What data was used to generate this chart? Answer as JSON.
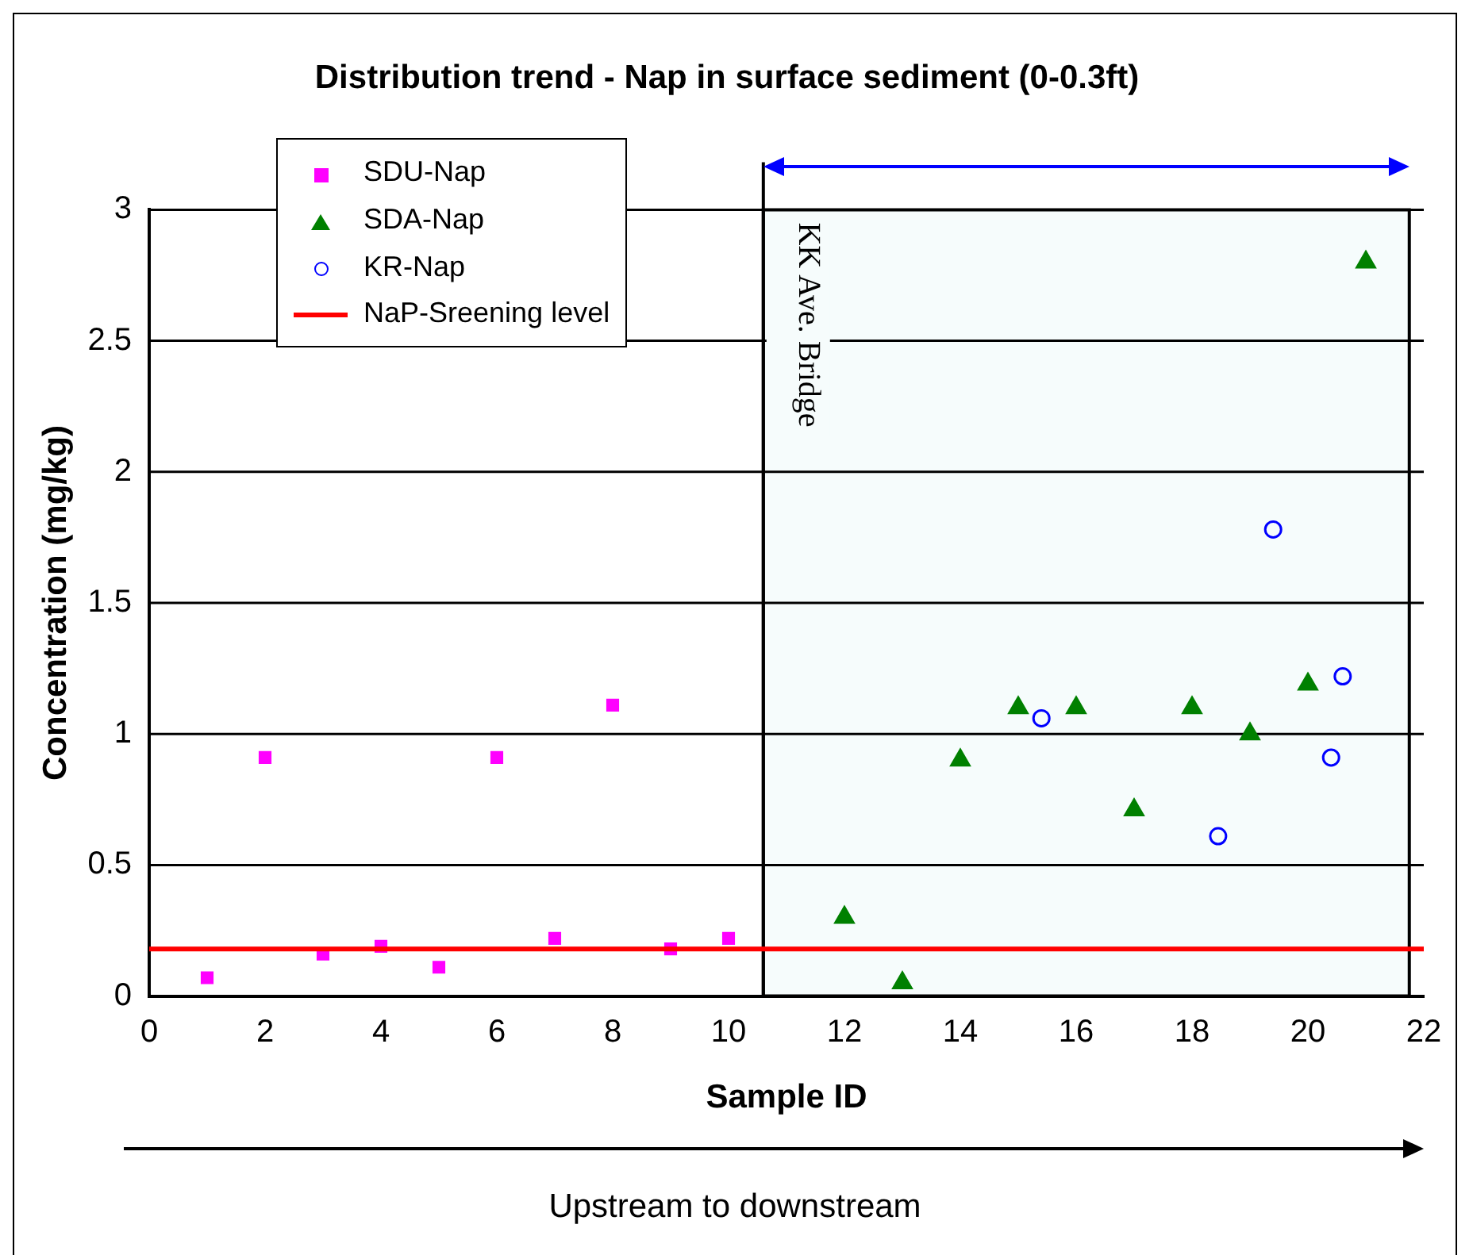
{
  "chart_data": {
    "type": "scatter",
    "title": "Distribution trend - Nap in surface sediment (0-0.3ft)",
    "xlabel": "Sample ID",
    "ylabel": "Concentration (mg/kg)",
    "series": [
      {
        "name": "SDU-Nap",
        "color": "#ff00ff",
        "marker": "square",
        "x": [
          1,
          2,
          3,
          4,
          5,
          6,
          7,
          8,
          9,
          10
        ],
        "values": [
          0.07,
          0.91,
          0.16,
          0.19,
          0.11,
          0.91,
          0.22,
          1.11,
          0.18,
          0.22
        ]
      },
      {
        "name": "SDA-Nap",
        "color": "#008000",
        "marker": "triangle",
        "x": [
          12,
          13,
          14,
          15,
          16,
          17,
          18,
          19,
          20,
          21
        ],
        "values": [
          0.3,
          0.05,
          0.9,
          1.1,
          1.1,
          0.71,
          1.1,
          1.0,
          1.19,
          2.8
        ]
      },
      {
        "name": "KR-Nap",
        "color": "#0000ff",
        "marker": "circle",
        "x": [
          15.4,
          18.45,
          19.4,
          20.4,
          20.6
        ],
        "values": [
          1.06,
          0.61,
          1.78,
          0.91,
          1.22
        ]
      }
    ],
    "ref_lines": [
      {
        "axis": "y",
        "value": 0.18,
        "label": "NaP-Sreening level",
        "color": "#ff0000"
      },
      {
        "axis": "x",
        "value": 10.6,
        "label": "KK Ave. Bridge",
        "color": "#000000"
      }
    ],
    "bands": [
      {
        "axis": "x",
        "from": 10.6,
        "to": 21.75,
        "color": "#f6fcfc"
      }
    ],
    "annotations": [
      "Upstream to downstream"
    ],
    "xlim": [
      0,
      22
    ],
    "xticks": [
      0,
      2,
      4,
      6,
      8,
      10,
      12,
      14,
      16,
      18,
      20,
      22
    ],
    "ylim": [
      0,
      3
    ],
    "yticks": [
      0,
      0.5,
      1,
      1.5,
      2,
      2.5,
      3
    ],
    "grid": "y",
    "legend": "top left"
  }
}
